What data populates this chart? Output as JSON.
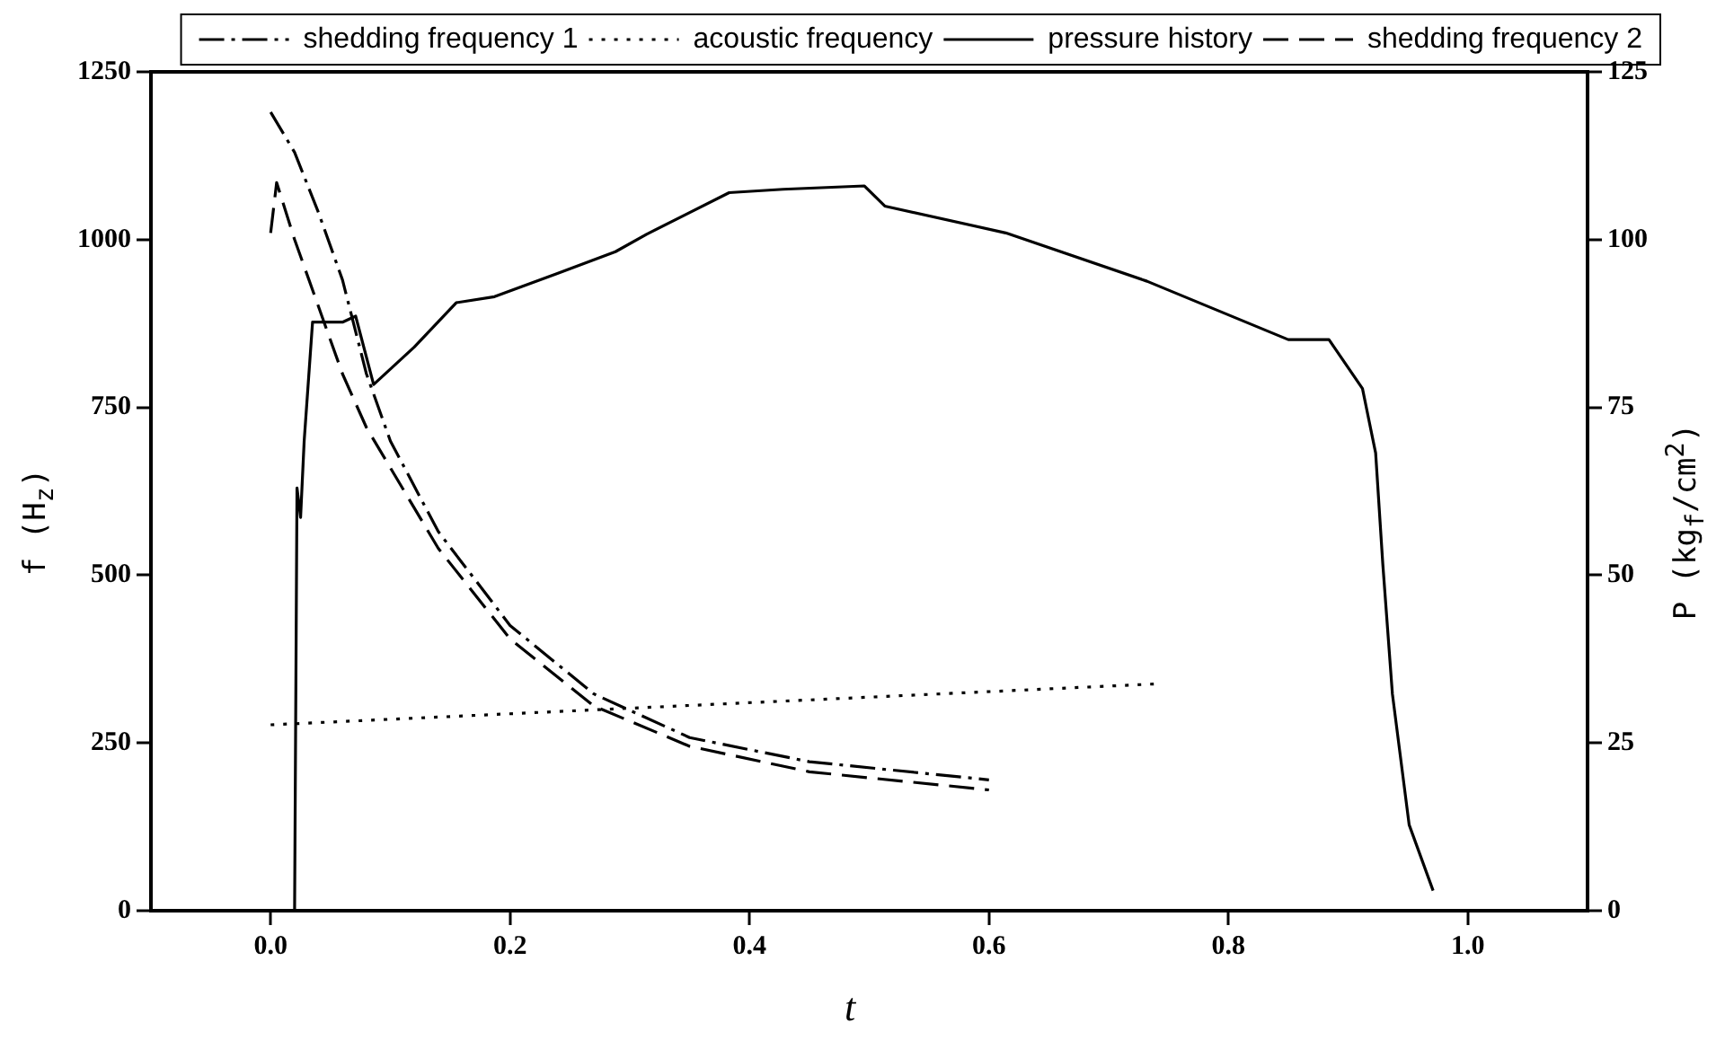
{
  "chart_data": {
    "type": "line",
    "xlabel": "t",
    "ylabel": "f (H$_{z}$)",
    "y2label": "P (kg$_{f}$/cm$^{2}$)",
    "xlim": [
      -0.1,
      1.1
    ],
    "xticks": [
      {
        "value": 0,
        "label": "0.0"
      },
      0.2,
      0.4,
      0.6,
      0.8,
      {
        "value": 1,
        "label": "1.0"
      }
    ],
    "ylim": [
      0,
      1250
    ],
    "yticks": [
      0,
      250,
      500,
      750,
      1000,
      1250
    ],
    "y2lim": [
      0,
      125
    ],
    "y2ticks": [
      0,
      25,
      50,
      75,
      100,
      125
    ],
    "grid": false,
    "legend": "top right",
    "marker": "none",
    "series": [
      {
        "name": "shedding frequency 1",
        "color": "#000000",
        "line_style": "dashdot",
        "x": [
          0.0,
          0.02,
          0.04,
          0.06,
          0.08,
          0.1,
          0.14,
          0.2,
          0.27,
          0.35,
          0.45,
          0.6
        ],
        "values": [
          1190,
          1130,
          1040,
          940,
          800,
          700,
          565,
          425,
          323,
          258,
          222,
          195
        ]
      },
      {
        "name": "acoustic frequency",
        "color": "#000000",
        "line_style": "dotted",
        "x": [
          0.0,
          0.74
        ],
        "values": [
          277,
          338
        ]
      },
      {
        "name": "pressure history",
        "color": "#000000",
        "line_style": "solid",
        "axis": "y2",
        "x": [
          0.0,
          0.02,
          0.022,
          0.025,
          0.028,
          0.035,
          0.06,
          0.071,
          0.086,
          0.12,
          0.155,
          0.187,
          0.24,
          0.288,
          0.314,
          0.383,
          0.428,
          0.496,
          0.513,
          0.614,
          0.732,
          0.85,
          0.884,
          0.912,
          0.923,
          0.929,
          0.937,
          0.951,
          0.971
        ],
        "values": [
          0,
          0,
          63,
          58.6,
          70,
          87.7,
          87.7,
          88.6,
          78.4,
          84,
          90.6,
          91.5,
          95,
          98.2,
          100.8,
          107,
          107.5,
          108,
          105,
          101,
          93.8,
          85.1,
          85.1,
          77.8,
          68.2,
          51.6,
          32.3,
          12.8,
          3
        ]
      },
      {
        "name": "shedding frequency 2",
        "color": "#000000",
        "line_style": "dashed",
        "x": [
          0.0,
          0.005,
          0.02,
          0.04,
          0.06,
          0.08,
          0.1,
          0.14,
          0.2,
          0.27,
          0.35,
          0.45,
          0.6
        ],
        "values": [
          1010,
          1085,
          1000,
          900,
          800,
          720,
          660,
          540,
          405,
          305,
          245,
          207,
          180
        ]
      }
    ]
  }
}
